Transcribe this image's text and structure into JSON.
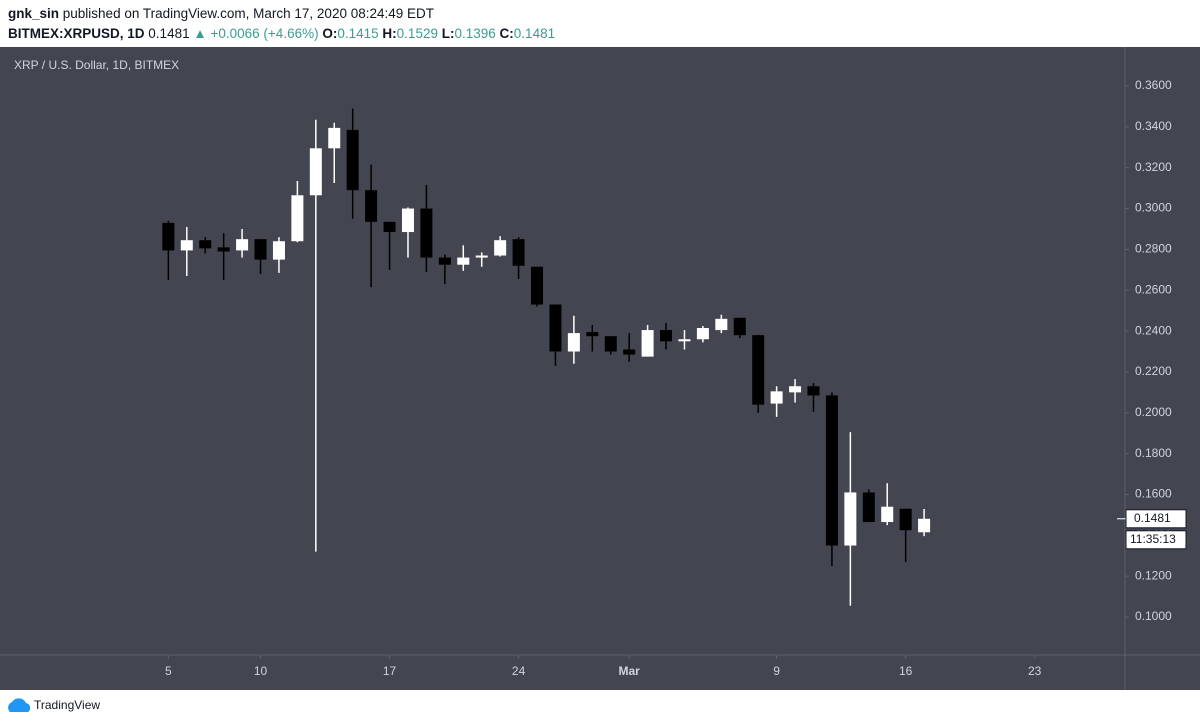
{
  "header": {
    "author": "gnk_sin",
    "published": "published on TradingView.com, March 17, 2020 08:24:49 EDT",
    "symbol": "BITMEX:XRPUSD, 1D",
    "last": "0.1481",
    "arrow": "▲",
    "change": "+0.0066 (+4.66%)",
    "ohlc": [
      {
        "label": "O:",
        "value": "0.1415"
      },
      {
        "label": "H:",
        "value": "0.1529"
      },
      {
        "label": "L:",
        "value": "0.1396"
      },
      {
        "label": "C:",
        "value": "0.1481"
      }
    ]
  },
  "chart_data": {
    "type": "candlestick",
    "title": "XRP / U.S. Dollar, 1D, BITMEX",
    "x": [
      0,
      1,
      2,
      3,
      4,
      5,
      6,
      7,
      8,
      9,
      10,
      11,
      12,
      13,
      14,
      15,
      16,
      17,
      18,
      19,
      20,
      21,
      22,
      23,
      24,
      25,
      26,
      27,
      28,
      29,
      30,
      31,
      32,
      33,
      34,
      35,
      36,
      37,
      38,
      39,
      40,
      41
    ],
    "open": [
      0.293,
      0.2795,
      0.2845,
      0.281,
      0.2795,
      0.285,
      0.275,
      0.284,
      0.3065,
      0.3295,
      0.3385,
      0.309,
      0.2935,
      0.2885,
      0.3,
      0.276,
      0.2725,
      0.276,
      0.277,
      0.285,
      0.2715,
      0.253,
      0.23,
      0.2395,
      0.2375,
      0.231,
      0.2275,
      0.2405,
      0.235,
      0.236,
      0.2405,
      0.2465,
      0.238,
      0.2045,
      0.21,
      0.213,
      0.2085,
      0.135,
      0.161,
      0.1465,
      0.153,
      0.1415
    ],
    "high": [
      0.294,
      0.291,
      0.286,
      0.288,
      0.29,
      0.285,
      0.286,
      0.3135,
      0.3435,
      0.342,
      0.349,
      0.3215,
      0.2935,
      0.3005,
      0.3115,
      0.2775,
      0.282,
      0.2785,
      0.2865,
      0.286,
      0.2715,
      0.253,
      0.2475,
      0.243,
      0.2375,
      0.239,
      0.243,
      0.244,
      0.2405,
      0.2425,
      0.248,
      0.2465,
      0.238,
      0.213,
      0.2165,
      0.2145,
      0.21,
      0.1905,
      0.1625,
      0.1655,
      0.153,
      0.1529
    ],
    "low": [
      0.265,
      0.267,
      0.278,
      0.265,
      0.276,
      0.268,
      0.2685,
      0.2835,
      0.132,
      0.3125,
      0.295,
      0.2615,
      0.27,
      0.276,
      0.269,
      0.263,
      0.2695,
      0.2715,
      0.2765,
      0.2655,
      0.252,
      0.223,
      0.224,
      0.23,
      0.2285,
      0.225,
      0.2275,
      0.231,
      0.231,
      0.2345,
      0.239,
      0.2365,
      0.2,
      0.198,
      0.205,
      0.2005,
      0.125,
      0.1055,
      0.1465,
      0.145,
      0.127,
      0.1396
    ],
    "close": [
      0.2795,
      0.2845,
      0.2805,
      0.279,
      0.285,
      0.275,
      0.284,
      0.3065,
      0.3295,
      0.3395,
      0.309,
      0.2935,
      0.2885,
      0.3,
      0.276,
      0.2725,
      0.276,
      0.277,
      0.2845,
      0.272,
      0.253,
      0.23,
      0.239,
      0.2375,
      0.23,
      0.2285,
      0.2405,
      0.235,
      0.236,
      0.2415,
      0.246,
      0.238,
      0.204,
      0.2105,
      0.213,
      0.2085,
      0.135,
      0.161,
      0.1465,
      0.154,
      0.1425,
      0.1481
    ],
    "up_color": "#ffffff",
    "down_color": "#000000",
    "background": "#434651",
    "xlim": [
      -8.7,
      51.9
    ],
    "xticks": [
      {
        "value": 0,
        "label": "5"
      },
      {
        "value": 5,
        "label": "10"
      },
      {
        "value": 12,
        "label": "17"
      },
      {
        "value": 19,
        "label": "24"
      },
      {
        "value": 25,
        "label": "Mar"
      },
      {
        "value": 33,
        "label": "9"
      },
      {
        "value": 40,
        "label": "16"
      },
      {
        "value": 47,
        "label": "23"
      }
    ],
    "ylim": [
      0.0814,
      0.3791
    ],
    "yticks": [
      {
        "value": 0.1,
        "label": "0.1000"
      },
      {
        "value": 0.12,
        "label": "0.1200"
      },
      {
        "value": 0.14,
        "label": "0.1400"
      },
      {
        "value": 0.16,
        "label": "0.1600"
      },
      {
        "value": 0.18,
        "label": "0.1800"
      },
      {
        "value": 0.2,
        "label": "0.2000"
      },
      {
        "value": 0.22,
        "label": "0.2200"
      },
      {
        "value": 0.24,
        "label": "0.2400"
      },
      {
        "value": 0.26,
        "label": "0.2600"
      },
      {
        "value": 0.28,
        "label": "0.2800"
      },
      {
        "value": 0.3,
        "label": "0.3000"
      },
      {
        "value": 0.32,
        "label": "0.3200"
      },
      {
        "value": 0.34,
        "label": "0.3400"
      },
      {
        "value": 0.36,
        "label": "0.3600"
      }
    ],
    "grid": false,
    "last_price_label": "0.1481",
    "countdown": "11:35:13"
  },
  "footer": {
    "brand": "TradingView"
  }
}
